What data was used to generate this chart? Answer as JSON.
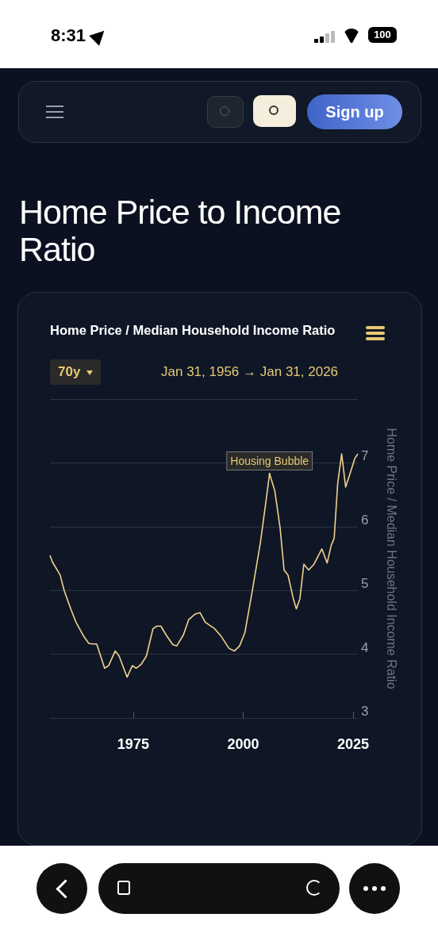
{
  "chart_data": {
    "type": "line",
    "title": "Home Price to Income Ratio",
    "subtitle": "Home Price / Median Household Income Ratio",
    "ylabel": "Home Price / Median Household Income Ratio",
    "annotations": [
      "70y",
      "Jan 31, 1956 → Jan 31, 2026",
      "Sign up",
      "8:31",
      "100",
      {
        "text": "Housing Bubble",
        "x": 2006.0,
        "y": 6.83
      }
    ],
    "x": [
      1956.08,
      1956.6,
      1958.4,
      1959.3,
      1960.8,
      1962.0,
      1963.75,
      1964.9,
      1965.8,
      1966.7,
      1968.5,
      1969.4,
      1970.9,
      1971.8,
      1973.6,
      1974.8,
      1975.7,
      1976.8,
      1978.0,
      1979.5,
      1980.4,
      1981.3,
      1982.5,
      1984.0,
      1984.9,
      1986.4,
      1987.6,
      1989.1,
      1990.2,
      1991.4,
      1993.5,
      1995.0,
      1996.8,
      1998.0,
      1999.2,
      2000.4,
      2002.1,
      2003.9,
      2005.1,
      2006.0,
      2007.2,
      2008.4,
      2009.3,
      2010.2,
      2011.4,
      2012.1,
      2012.9,
      2013.8,
      2014.9,
      2016.1,
      2017.9,
      2019.1,
      2020.0,
      2020.7,
      2021.5,
      2022.4,
      2023.3,
      2024.2,
      2025.4,
      2026.08
    ],
    "series": [
      {
        "color": "#f0d28c",
        "values": [
          5.55,
          5.45,
          5.24,
          5.0,
          4.71,
          4.5,
          4.28,
          4.17,
          4.16,
          4.16,
          3.78,
          3.82,
          4.05,
          3.97,
          3.64,
          3.82,
          3.78,
          3.84,
          3.97,
          4.4,
          4.44,
          4.44,
          4.3,
          4.15,
          4.13,
          4.3,
          4.54,
          4.63,
          4.65,
          4.5,
          4.4,
          4.28,
          4.09,
          4.05,
          4.13,
          4.34,
          5.0,
          5.74,
          6.35,
          6.83,
          6.56,
          5.98,
          5.32,
          5.24,
          4.87,
          4.71,
          4.87,
          5.41,
          5.32,
          5.41,
          5.65,
          5.43,
          5.7,
          5.82,
          6.68,
          7.14,
          6.62,
          6.81,
          7.07,
          7.14
        ]
      }
    ],
    "xlim": [
      1956.08,
      2026.08
    ],
    "xticks": [
      1975,
      2000,
      2025
    ],
    "ylim": [
      3,
      8
    ],
    "yticks": [
      3,
      4,
      5,
      6,
      7,
      {
        "value": 8,
        "label": null
      }
    ],
    "grid": "y",
    "marker": "none",
    "line_style": "solid"
  }
}
